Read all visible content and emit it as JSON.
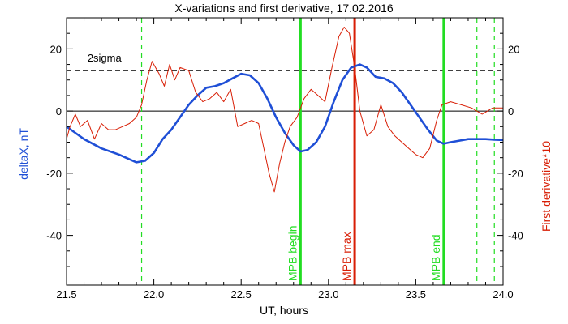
{
  "chart_data": {
    "type": "line",
    "title": "X-variations and first derivative, 17.02.2016",
    "xlabel": "UT, hours",
    "ylabel_left": "deltaX, nT",
    "ylabel_right": "First derivative*10",
    "xlim": [
      21.5,
      24.0
    ],
    "ylim": [
      -56,
      30
    ],
    "x_ticks": [
      21.5,
      22.0,
      22.5,
      23.0,
      23.5,
      24.0
    ],
    "x_tick_labels": [
      "21.5",
      "22.0",
      "22.5",
      "23.0",
      "23.5",
      "24.0"
    ],
    "y_ticks": [
      20,
      0,
      -20,
      -40
    ],
    "y_tick_labels": [
      "20",
      "0",
      "-20",
      "-40"
    ],
    "grid": false,
    "colors": {
      "deltaX": "#1f4fd6",
      "derivative": "#d81e05",
      "mpb_markers": "#22dd22",
      "mpb_max": "#d81e05",
      "threshold": "#000000"
    },
    "threshold": {
      "label": "2sigma",
      "value": 13
    },
    "zero_line": 0,
    "series": [
      {
        "name": "deltaX, nT",
        "axis": "left",
        "color": "#1f4fd6",
        "x": [
          21.5,
          21.55,
          21.6,
          21.7,
          21.8,
          21.9,
          21.95,
          22.0,
          22.05,
          22.1,
          22.15,
          22.2,
          22.25,
          22.3,
          22.35,
          22.4,
          22.45,
          22.5,
          22.55,
          22.6,
          22.65,
          22.7,
          22.75,
          22.8,
          22.84,
          22.88,
          22.93,
          22.98,
          23.03,
          23.08,
          23.13,
          23.18,
          23.22,
          23.27,
          23.32,
          23.37,
          23.42,
          23.47,
          23.52,
          23.57,
          23.62,
          23.66,
          23.7,
          23.75,
          23.8,
          23.85,
          23.9,
          23.95,
          24.0
        ],
        "y": [
          -5,
          -7,
          -9,
          -12,
          -14,
          -16.5,
          -16,
          -13.5,
          -9,
          -6,
          -2,
          2,
          5,
          7.5,
          8,
          9,
          10.5,
          12,
          11.5,
          9,
          4,
          -2,
          -7,
          -11,
          -13,
          -12.5,
          -10,
          -5,
          3,
          10,
          14,
          15,
          14,
          11,
          10.5,
          9,
          6,
          2,
          -2,
          -6,
          -9.5,
          -10.5,
          -10,
          -9.5,
          -9,
          -9,
          -9,
          -9.2,
          -9.3
        ]
      },
      {
        "name": "First derivative*10",
        "axis": "right",
        "color": "#d81e05",
        "x": [
          21.5,
          21.52,
          21.55,
          21.58,
          21.62,
          21.66,
          21.7,
          21.74,
          21.78,
          21.82,
          21.86,
          21.9,
          21.93,
          21.96,
          21.99,
          22.0,
          22.03,
          22.06,
          22.09,
          22.12,
          22.15,
          22.2,
          22.24,
          22.28,
          22.32,
          22.36,
          22.4,
          22.44,
          22.48,
          22.52,
          22.56,
          22.6,
          22.63,
          22.66,
          22.69,
          22.72,
          22.75,
          22.78,
          22.82,
          22.86,
          22.9,
          22.94,
          22.98,
          23.02,
          23.06,
          23.09,
          23.12,
          23.15,
          23.18,
          23.22,
          23.26,
          23.3,
          23.34,
          23.38,
          23.42,
          23.46,
          23.5,
          23.54,
          23.58,
          23.62,
          23.65,
          23.7,
          23.76,
          23.82,
          23.88,
          23.94,
          24.0
        ],
        "y": [
          -9,
          -5,
          -1,
          -5,
          -3,
          -9,
          -4,
          -6,
          -6,
          -5,
          -4,
          -2,
          2,
          10,
          16,
          15,
          12,
          8,
          15,
          10,
          14,
          13,
          6,
          3,
          4,
          6,
          3,
          7,
          -5,
          -4,
          -3,
          -4,
          -12,
          -20,
          -26,
          -17,
          -10,
          -5,
          -2,
          4,
          7,
          5,
          3,
          14,
          24,
          27,
          25,
          14,
          0,
          -8,
          -6,
          2,
          -5,
          -8,
          -10,
          -12,
          -14,
          -15,
          -12,
          -3,
          2,
          3,
          2,
          1,
          -1,
          1,
          1
        ]
      }
    ],
    "vlines": [
      {
        "x": 21.93,
        "style": "dashed",
        "color": "#22dd22",
        "label": ""
      },
      {
        "x": 22.84,
        "style": "solid",
        "color": "#22dd22",
        "label": "MPB begin"
      },
      {
        "x": 23.15,
        "style": "solid",
        "color": "#d81e05",
        "label": "MPB max"
      },
      {
        "x": 23.66,
        "style": "solid",
        "color": "#22dd22",
        "label": "MPB end"
      },
      {
        "x": 23.85,
        "style": "dashed",
        "color": "#22dd22",
        "label": ""
      },
      {
        "x": 23.95,
        "style": "dashed",
        "color": "#22dd22",
        "label": ""
      }
    ]
  }
}
